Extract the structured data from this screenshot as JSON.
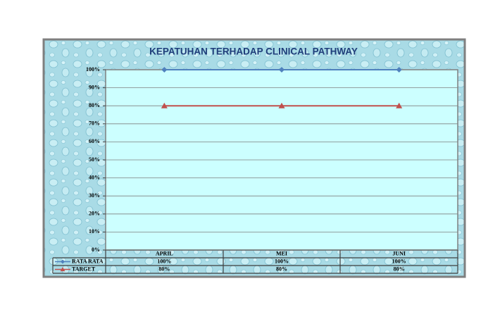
{
  "chart_data": {
    "type": "line",
    "title": "KEPATUHAN TERHADAP CLINICAL PATHWAY",
    "categories": [
      "APRIL",
      "MEI",
      "JUNI"
    ],
    "series": [
      {
        "name": "RATA RATA",
        "color": "#4f81bd",
        "marker": "diamond",
        "values": [
          100,
          100,
          100
        ],
        "value_labels": [
          "100%",
          "100%",
          "100%"
        ]
      },
      {
        "name": "TARGET",
        "color": "#c0504d",
        "marker": "triangle",
        "values": [
          80,
          80,
          80
        ],
        "value_labels": [
          "80%",
          "80%",
          "80%"
        ]
      }
    ],
    "ylim": [
      0,
      100
    ],
    "yticks": [
      {
        "value": 0,
        "label": "0%"
      },
      {
        "value": 10,
        "label": "10%"
      },
      {
        "value": 20,
        "label": "20%"
      },
      {
        "value": 30,
        "label": "30%"
      },
      {
        "value": 40,
        "label": "40%"
      },
      {
        "value": 50,
        "label": "50%"
      },
      {
        "value": 60,
        "label": "60%"
      },
      {
        "value": 70,
        "label": "70%"
      },
      {
        "value": 80,
        "label": "80%"
      },
      {
        "value": 90,
        "label": "90%"
      },
      {
        "value": 100,
        "label": "100%"
      }
    ],
    "grid": true,
    "legend": "data-table"
  }
}
